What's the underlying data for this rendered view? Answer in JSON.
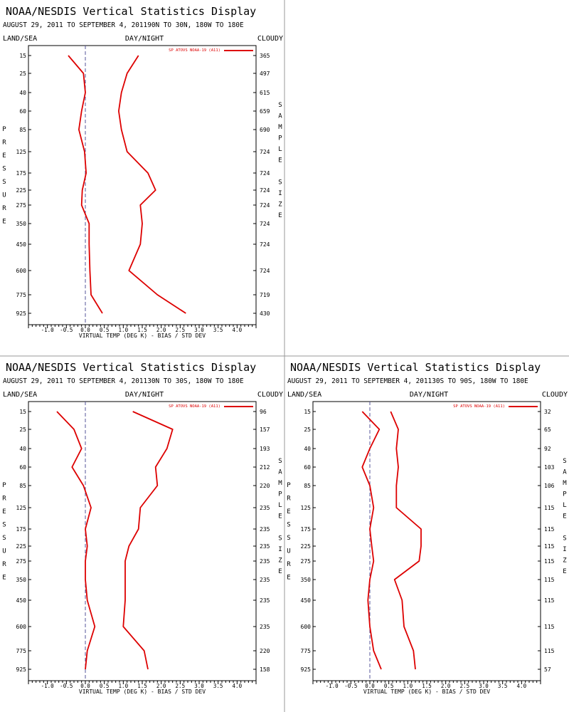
{
  "colors": {
    "background": "#ffffff",
    "text": "#000000",
    "series": "#dd0000",
    "zero_line": "#555599",
    "divider": "#999999"
  },
  "chart_data": [
    {
      "type": "line",
      "header": "NOAA/NESDIS Vertical Statistics Display",
      "subtitle": "AUGUST 29, 2011 TO SEPTEMBER 4, 201190N TO 30N, 180W TO 180E",
      "corner_left": "LAND/SEA",
      "corner_center": "DAY/NIGHT",
      "corner_right": "CLOUDY",
      "xlabel": "VIRTUAL TEMP (DEG K) - BIAS / STD DEV",
      "ylabel": "PRESSURE",
      "y2label": "SAMPLE SIZE",
      "xlim": [
        -1.5,
        4.5
      ],
      "xticks": [
        "-1.0",
        "-0.5",
        "0.0",
        "0.5",
        "1.0",
        "1.5",
        "2.0",
        "2.5",
        "3.0",
        "3.5",
        "4.0"
      ],
      "legend": "SP ATOVS NOAA-19 (A11)",
      "pressure_levels": [
        "15",
        "25",
        "40",
        "60",
        "85",
        "125",
        "175",
        "225",
        "275",
        "350",
        "450",
        "600",
        "775",
        "925"
      ],
      "sample_size": [
        "365",
        "497",
        "615",
        "659",
        "690",
        "724",
        "724",
        "724",
        "724",
        "724",
        "724",
        "724",
        "719",
        "430"
      ],
      "series": [
        {
          "values": [
            -0.45,
            -0.05,
            0.0,
            -0.1,
            -0.17,
            -0.02,
            0.02,
            -0.08,
            -0.1,
            0.1,
            0.1,
            0.12,
            0.15,
            0.45
          ]
        },
        {
          "values": [
            1.4,
            1.1,
            0.95,
            0.88,
            0.95,
            1.1,
            1.65,
            1.85,
            1.45,
            1.5,
            1.45,
            1.15,
            1.9,
            2.65
          ]
        }
      ]
    },
    {
      "type": "line",
      "header": "NOAA/NESDIS Vertical Statistics Display",
      "subtitle": "AUGUST 29, 2011 TO SEPTEMBER 4, 201130N TO 30S, 180W TO 180E",
      "corner_left": "LAND/SEA",
      "corner_center": "DAY/NIGHT",
      "corner_right": "CLOUDY",
      "xlabel": "VIRTUAL TEMP (DEG K) - BIAS / STD DEV",
      "ylabel": "PRESSURE",
      "y2label": "SAMPLE SIZE",
      "xlim": [
        -1.5,
        4.5
      ],
      "xticks": [
        "-1.0",
        "-0.5",
        "0.0",
        "0.5",
        "1.0",
        "1.5",
        "2.0",
        "2.5",
        "3.0",
        "3.5",
        "4.0"
      ],
      "legend": "SP ATOVS NOAA-19 (A11)",
      "pressure_levels": [
        "15",
        "25",
        "40",
        "60",
        "85",
        "125",
        "175",
        "225",
        "275",
        "350",
        "450",
        "600",
        "775",
        "925"
      ],
      "sample_size": [
        "96",
        "157",
        "193",
        "212",
        "220",
        "235",
        "235",
        "235",
        "235",
        "235",
        "235",
        "235",
        "220",
        "158"
      ],
      "series": [
        {
          "values": [
            -0.75,
            -0.3,
            -0.1,
            -0.35,
            -0.05,
            0.15,
            0.0,
            0.05,
            0.0,
            0.0,
            0.05,
            0.25,
            0.05,
            0.0
          ]
        },
        {
          "values": [
            1.25,
            2.3,
            2.15,
            1.85,
            1.9,
            1.45,
            1.4,
            1.15,
            1.05,
            1.05,
            1.05,
            1.0,
            1.55,
            1.65
          ]
        }
      ]
    },
    {
      "type": "line",
      "header": "NOAA/NESDIS Vertical Statistics Display",
      "subtitle": "AUGUST 29, 2011 TO SEPTEMBER 4, 201130S TO 90S, 180W TO 180E",
      "corner_left": "LAND/SEA",
      "corner_center": "DAY/NIGHT",
      "corner_right": "CLOUDY",
      "xlabel": "VIRTUAL TEMP (DEG K) - BIAS / STD DEV",
      "ylabel": "PRESSURE",
      "y2label": "SAMPLE SIZE",
      "xlim": [
        -1.5,
        4.5
      ],
      "xticks": [
        "-1.0",
        "-0.5",
        "0.0",
        "0.5",
        "1.0",
        "1.5",
        "2.0",
        "2.5",
        "3.0",
        "3.5",
        "4.0"
      ],
      "legend": "SP ATOVS NOAA-19 (A11)",
      "pressure_levels": [
        "15",
        "25",
        "40",
        "60",
        "85",
        "125",
        "175",
        "225",
        "275",
        "350",
        "450",
        "600",
        "775",
        "925"
      ],
      "sample_size": [
        "32",
        "65",
        "92",
        "103",
        "106",
        "115",
        "115",
        "115",
        "115",
        "115",
        "115",
        "115",
        "115",
        "57"
      ],
      "series": [
        {
          "values": [
            -0.2,
            0.25,
            0.0,
            -0.2,
            0.0,
            0.1,
            0.0,
            0.05,
            0.1,
            0.0,
            -0.05,
            0.0,
            0.1,
            0.3
          ]
        },
        {
          "values": [
            0.55,
            0.75,
            0.7,
            0.75,
            0.7,
            0.7,
            1.35,
            1.35,
            1.3,
            0.65,
            0.85,
            0.9,
            1.15,
            1.2
          ]
        }
      ]
    }
  ]
}
